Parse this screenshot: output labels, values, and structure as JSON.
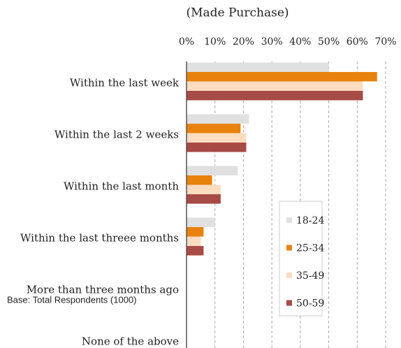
{
  "chart_data": {
    "type": "bar",
    "orientation": "horizontal",
    "title": "(Made Purchase)",
    "annotation": "Base: Total Respondents (1000)",
    "categories": [
      "Within the last week",
      "Within the last 2 weeks",
      "Within the last month",
      "Within the last threee months",
      "More than three months ago",
      "None of the above"
    ],
    "series": [
      {
        "name": "18-24",
        "color": "#e0e0e0",
        "values": [
          50,
          22,
          18,
          10,
          0,
          0
        ]
      },
      {
        "name": "25-34",
        "color": "#e8820c",
        "values": [
          67,
          19,
          9,
          6,
          0,
          0
        ]
      },
      {
        "name": "35-49",
        "color": "#fddcc0",
        "values": [
          62,
          21,
          12,
          5,
          0,
          0
        ]
      },
      {
        "name": "50-59",
        "color": "#a84a45",
        "values": [
          62,
          21,
          12,
          6,
          0,
          0
        ]
      }
    ],
    "xlim": [
      0,
      70
    ],
    "xticks": [
      {
        "value": 0,
        "label": "0%"
      },
      {
        "value": 10,
        "label": "10%"
      },
      {
        "value": 20,
        "label": "20%"
      },
      {
        "value": 30,
        "label": "30%"
      },
      {
        "value": 40,
        "label": "40%"
      },
      {
        "value": 50,
        "label": "50%"
      },
      {
        "value": 60,
        "label": "60%"
      },
      {
        "value": 70,
        "label": "70%"
      }
    ],
    "grid": true,
    "legend": "right"
  }
}
